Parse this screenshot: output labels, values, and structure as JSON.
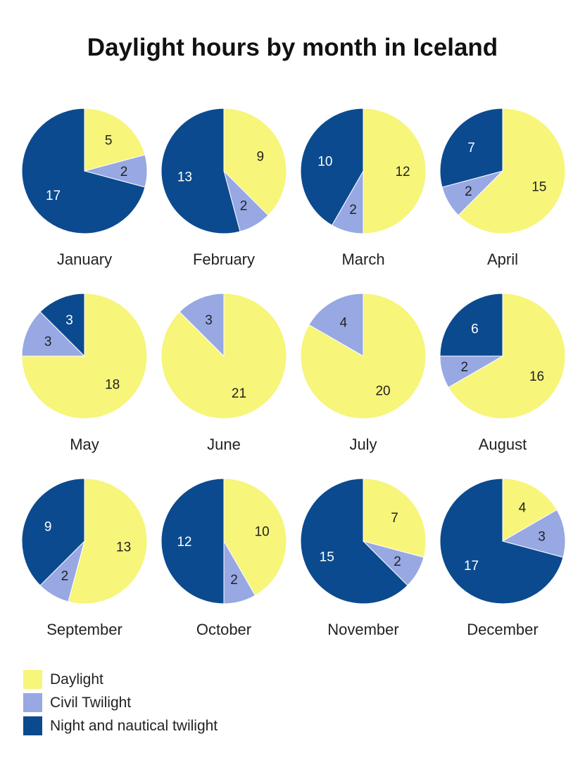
{
  "chart_data": {
    "type": "pie",
    "title": "Daylight hours by month in Iceland",
    "series_names": [
      "Daylight",
      "Civil Twilight",
      "Night and nautical twilight"
    ],
    "colors": [
      "#F7F57A",
      "#97A8E3",
      "#0B4A8F"
    ],
    "label_colors": [
      "#222222",
      "#222222",
      "#ffffff"
    ],
    "pies": [
      {
        "label": "January",
        "values": [
          5,
          2,
          17
        ]
      },
      {
        "label": "February",
        "values": [
          9,
          2,
          13
        ]
      },
      {
        "label": "March",
        "values": [
          12,
          2,
          10
        ]
      },
      {
        "label": "April",
        "values": [
          15,
          2,
          7
        ]
      },
      {
        "label": "May",
        "values": [
          18,
          3,
          3
        ]
      },
      {
        "label": "June",
        "values": [
          21,
          3,
          0
        ]
      },
      {
        "label": "July",
        "values": [
          20,
          4,
          0
        ]
      },
      {
        "label": "August",
        "values": [
          16,
          2,
          6
        ]
      },
      {
        "label": "September",
        "values": [
          13,
          2,
          9
        ]
      },
      {
        "label": "October",
        "values": [
          10,
          2,
          12
        ]
      },
      {
        "label": "November",
        "values": [
          7,
          2,
          15
        ]
      },
      {
        "label": "December",
        "values": [
          4,
          3,
          17
        ]
      }
    ],
    "legend_position": "bottom-left"
  }
}
